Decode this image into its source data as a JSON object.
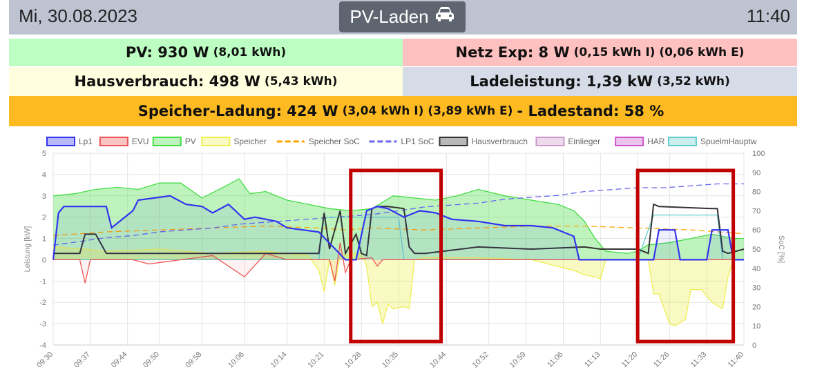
{
  "header": {
    "date": "Mi, 30.08.2023",
    "mode_label": "PV-Laden",
    "mode_icon": "car-icon",
    "time": "11:40"
  },
  "status": {
    "pv_main": "PV: 930 W",
    "pv_sub": "(8,01 kWh)",
    "netz_main": "Netz Exp: 8 W",
    "netz_sub": "(0,15 kWh I) (0,06 kWh E)",
    "haus_main": "Hausverbrauch: 498 W",
    "haus_sub": "(5,43 kWh)",
    "lade_main": "Ladeleistung: 1,39 kW",
    "lade_sub": "(3,52 kWh)",
    "speicher_main": "Speicher-Ladung: 424 W",
    "speicher_sub": "(3,04 kWh I) (3,89 kWh E)",
    "ladestand_main": "- Ladestand: 58 %"
  },
  "colors": {
    "header_bg": "#bec3d2",
    "pv_bg": "#bdffc3",
    "netz_bg": "#ffc0c0",
    "haus_bg": "#ffffe0",
    "lade_bg": "#d6dbe8",
    "speicher_bg": "#fdbb21",
    "highlight_box": "#c00000"
  },
  "chart_data": {
    "type": "line",
    "ylabel": "Leistung [kW]",
    "y2label": "SoC [%]",
    "ylim": [
      -4,
      5
    ],
    "y2lim": [
      0,
      100
    ],
    "yticks": [
      "-4",
      "-3",
      "-2",
      "-1",
      "0",
      "1",
      "2",
      "3",
      "4",
      "5"
    ],
    "y2ticks": [
      "0",
      "10",
      "20",
      "30",
      "40",
      "50",
      "60",
      "70",
      "80",
      "90",
      "100"
    ],
    "xticks": [
      "09:30",
      "09:37",
      "09:44",
      "09:50",
      "09:58",
      "10:06",
      "10:14",
      "10:21",
      "10:28",
      "10:35",
      "10:44",
      "10:52",
      "10:59",
      "11:06",
      "11:13",
      "11:20",
      "11:26",
      "11:33",
      "11:40"
    ],
    "grid": true,
    "legend_position": "top",
    "series": [
      {
        "name": "Lp1",
        "style": "area",
        "axis": "power",
        "color": "#3333ee",
        "x": [
          "09:30",
          "09:31",
          "09:32",
          "09:40",
          "09:41",
          "09:45",
          "09:46",
          "09:52",
          "09:55",
          "09:58",
          "10:00",
          "10:03",
          "10:06",
          "10:08",
          "10:12",
          "10:14",
          "10:20",
          "10:25",
          "10:27",
          "10:29",
          "10:31",
          "10:33",
          "10:36",
          "10:39",
          "10:42",
          "10:45",
          "10:50",
          "10:55",
          "11:00",
          "11:04",
          "11:08",
          "11:09",
          "11:11",
          "11:20",
          "11:23",
          "11:24",
          "11:27",
          "11:28",
          "11:33",
          "11:34",
          "11:37",
          "11:38",
          "11:40"
        ],
        "y": [
          0,
          2.2,
          2.5,
          2.5,
          1.5,
          2.3,
          2.8,
          3.0,
          2.6,
          2.5,
          2.2,
          2.6,
          1.9,
          2.0,
          1.8,
          1.5,
          1.3,
          0,
          0,
          2.3,
          2.5,
          2.4,
          2.0,
          2.3,
          2.2,
          1.9,
          1.8,
          1.6,
          1.6,
          1.5,
          1.1,
          0,
          0,
          0,
          0,
          1.4,
          1.4,
          0,
          0,
          1.4,
          1.4,
          0,
          0
        ]
      },
      {
        "name": "EVU",
        "style": "area",
        "axis": "power",
        "color": "#ee5555",
        "x": [
          "09:30",
          "09:35",
          "09:36",
          "09:37",
          "09:45",
          "09:48",
          "10:00",
          "10:06",
          "10:10",
          "10:14",
          "10:22",
          "10:23",
          "10:24",
          "10:25",
          "10:26",
          "10:30",
          "10:31",
          "10:32",
          "10:40",
          "10:50",
          "11:00",
          "11:13",
          "11:20",
          "11:40"
        ],
        "y": [
          0,
          0,
          -1.1,
          0,
          0,
          -0.2,
          0.2,
          -0.8,
          0.3,
          0,
          0,
          -1.0,
          0.8,
          -0.6,
          0,
          0.1,
          -0.3,
          0,
          0,
          0,
          0,
          0,
          0,
          0
        ]
      },
      {
        "name": "PV",
        "style": "area",
        "axis": "power",
        "color": "#44dd44",
        "x": [
          "09:30",
          "09:34",
          "09:38",
          "09:42",
          "09:46",
          "09:50",
          "09:54",
          "09:58",
          "10:02",
          "10:05",
          "10:07",
          "10:10",
          "10:14",
          "10:18",
          "10:22",
          "10:26",
          "10:30",
          "10:34",
          "10:38",
          "10:42",
          "10:46",
          "10:50",
          "10:55",
          "11:00",
          "11:05",
          "11:08",
          "11:10",
          "11:12",
          "11:14",
          "11:18",
          "11:20",
          "11:22",
          "11:26",
          "11:30",
          "11:34",
          "11:38",
          "11:40"
        ],
        "y": [
          3.0,
          3.1,
          3.3,
          3.4,
          3.3,
          3.6,
          3.6,
          2.9,
          3.4,
          3.8,
          3.1,
          3.2,
          2.8,
          2.6,
          2.4,
          2.3,
          2.4,
          3.0,
          2.9,
          2.8,
          3.0,
          3.3,
          3.0,
          2.8,
          2.6,
          2.3,
          1.8,
          1.0,
          0.4,
          0.3,
          0.4,
          0.7,
          0.8,
          1.0,
          1.2,
          1.0,
          1.0
        ]
      },
      {
        "name": "Speicher",
        "style": "area",
        "axis": "power",
        "color": "#eeee55",
        "x": [
          "09:30",
          "09:36",
          "09:40",
          "09:50",
          "10:00",
          "10:10",
          "10:18",
          "10:20",
          "10:21",
          "10:22",
          "10:23",
          "10:24",
          "10:28",
          "10:29",
          "10:30",
          "10:31",
          "10:32",
          "10:33",
          "10:34",
          "10:36",
          "10:37",
          "10:38",
          "10:40",
          "10:50",
          "11:00",
          "11:08",
          "11:10",
          "11:12",
          "11:13",
          "11:14",
          "11:20",
          "11:22",
          "11:23",
          "11:24",
          "11:26",
          "11:27",
          "11:29",
          "11:30",
          "11:32",
          "11:34",
          "11:36",
          "11:37",
          "11:38",
          "11:40"
        ],
        "y": [
          0.6,
          0.5,
          0.4,
          0.5,
          0.3,
          0.4,
          0.2,
          -0.5,
          -1.5,
          0,
          -1.2,
          0.2,
          0.3,
          -0.3,
          -2.2,
          -2.0,
          -3.0,
          -2.1,
          -2.3,
          -2.2,
          -2.3,
          0,
          0.1,
          0.1,
          0,
          -0.5,
          -0.7,
          -0.8,
          -0.9,
          0,
          0,
          0,
          -1.6,
          -1.6,
          -3.0,
          -3.1,
          -2.8,
          -1.4,
          -1.4,
          -2.0,
          -2.3,
          -0.8,
          0,
          0
        ]
      },
      {
        "name": "Speicher SoC",
        "style": "dash",
        "axis": "soc",
        "color": "#ffa500",
        "x": [
          "09:30",
          "09:40",
          "09:50",
          "10:00",
          "10:10",
          "10:20",
          "10:25",
          "10:30",
          "10:40",
          "10:50",
          "11:00",
          "11:10",
          "11:20",
          "11:30",
          "11:40"
        ],
        "y": [
          57,
          59,
          60,
          61,
          62,
          61,
          60,
          61,
          60,
          61,
          62,
          62,
          61,
          60,
          58
        ]
      },
      {
        "name": "LP1 SoC",
        "style": "dash",
        "axis": "soc",
        "color": "#6666ee",
        "x": [
          "09:30",
          "09:35",
          "09:40",
          "09:45",
          "09:50",
          "09:55",
          "10:00",
          "10:05",
          "10:10",
          "10:15",
          "10:20",
          "10:25",
          "10:30",
          "10:35",
          "10:40",
          "10:45",
          "10:50",
          "10:55",
          "11:00",
          "11:05",
          "11:10",
          "11:15",
          "11:20",
          "11:25",
          "11:30",
          "11:35",
          "11:40"
        ],
        "y": [
          52,
          54,
          56,
          57,
          59,
          60,
          61,
          63,
          64,
          65,
          66,
          67,
          68,
          70,
          72,
          73,
          74,
          76,
          77,
          78,
          80,
          81,
          82,
          82,
          83,
          84,
          84
        ]
      },
      {
        "name": "Hausverbrauch",
        "style": "line",
        "axis": "power",
        "color": "#333333",
        "x": [
          "09:30",
          "09:35",
          "09:36",
          "09:38",
          "09:40",
          "09:50",
          "10:00",
          "10:10",
          "10:20",
          "10:21",
          "10:22",
          "10:24",
          "10:25",
          "10:27",
          "10:28",
          "10:29",
          "10:30",
          "10:31",
          "10:33",
          "10:36",
          "10:37",
          "10:38",
          "10:40",
          "10:50",
          "11:00",
          "11:10",
          "11:13",
          "11:20",
          "11:22",
          "11:23",
          "11:24",
          "11:34",
          "11:35",
          "11:36",
          "11:37",
          "11:40"
        ],
        "y": [
          0.3,
          0.3,
          1.2,
          1.2,
          0.3,
          0.3,
          0.3,
          0.3,
          0.3,
          2.2,
          0.5,
          2.3,
          0.3,
          1.2,
          0.3,
          0.2,
          2.4,
          2.5,
          2.5,
          2.4,
          0.6,
          0.3,
          0.3,
          0.6,
          0.5,
          0.6,
          0.5,
          0.5,
          0.3,
          2.6,
          2.5,
          2.4,
          2.4,
          0.4,
          0.3,
          0.5
        ]
      },
      {
        "name": "Einlieger",
        "style": "line",
        "axis": "power",
        "color": "#cc99cc",
        "x": [],
        "y": []
      },
      {
        "name": "HAR",
        "style": "line",
        "axis": "power",
        "color": "#cc55cc",
        "x": [],
        "y": []
      },
      {
        "name": "SpuelmHauptw",
        "style": "line",
        "axis": "power",
        "color": "#66cccc",
        "x": [
          "09:30",
          "10:20",
          "10:21",
          "10:35",
          "10:36",
          "11:20",
          "11:23",
          "11:24",
          "11:35",
          "11:36",
          "11:40"
        ],
        "y": [
          0,
          0,
          2.0,
          2.0,
          0,
          0,
          2.1,
          2.1,
          2.1,
          0,
          0
        ]
      }
    ],
    "highlight_boxes": [
      {
        "x_from": "10:26",
        "x_to": "10:43"
      },
      {
        "x_from": "11:20",
        "x_to": "11:38"
      }
    ]
  }
}
